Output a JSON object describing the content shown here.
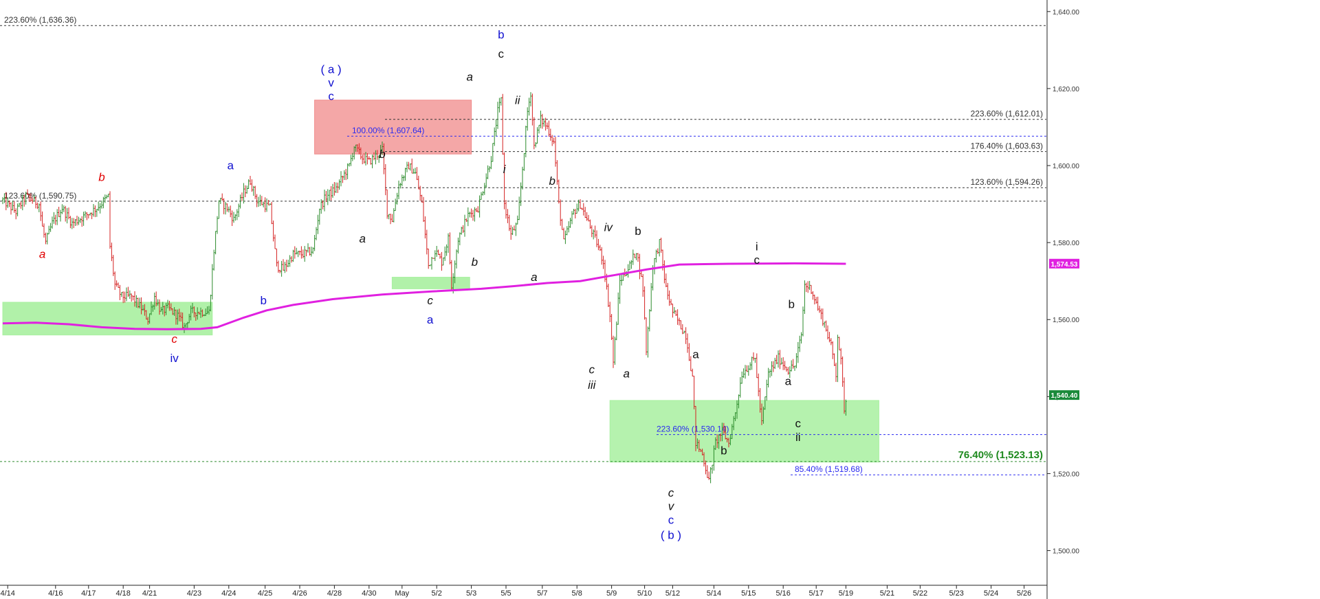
{
  "chart_data": {
    "type": "bar",
    "title": "",
    "xlabel": "",
    "ylabel": "",
    "ylim": [
      1491.0,
      1643.0
    ],
    "grid": false,
    "x_ticks": [
      {
        "i": 3,
        "label": "4/14"
      },
      {
        "i": 32,
        "label": "4/16"
      },
      {
        "i": 52,
        "label": "4/17"
      },
      {
        "i": 73,
        "label": "4/18"
      },
      {
        "i": 89,
        "label": "4/21"
      },
      {
        "i": 116,
        "label": "4/23"
      },
      {
        "i": 137,
        "label": "4/24"
      },
      {
        "i": 159,
        "label": "4/25"
      },
      {
        "i": 180,
        "label": "4/26"
      },
      {
        "i": 201,
        "label": "4/28"
      },
      {
        "i": 222,
        "label": "4/30"
      },
      {
        "i": 242,
        "label": "May"
      },
      {
        "i": 263,
        "label": "5/2"
      },
      {
        "i": 284,
        "label": "5/3"
      },
      {
        "i": 305,
        "label": "5/5"
      },
      {
        "i": 327,
        "label": "5/7"
      },
      {
        "i": 348,
        "label": "5/8"
      },
      {
        "i": 369,
        "label": "5/9"
      },
      {
        "i": 389,
        "label": "5/10"
      },
      {
        "i": 406,
        "label": "5/12"
      },
      {
        "i": 431,
        "label": "5/14"
      },
      {
        "i": 452,
        "label": "5/15"
      },
      {
        "i": 473,
        "label": "5/16"
      },
      {
        "i": 493,
        "label": "5/17"
      },
      {
        "i": 511,
        "label": "5/19"
      },
      {
        "i": 536,
        "label": "5/21"
      },
      {
        "i": 556,
        "label": "5/22"
      },
      {
        "i": 578,
        "label": "5/23"
      },
      {
        "i": 599,
        "label": "5/24"
      },
      {
        "i": 619,
        "label": "5/26"
      }
    ],
    "y_ticks": [
      {
        "v": 1500,
        "label": "1,500.00"
      },
      {
        "v": 1520,
        "label": "1,520.00"
      },
      {
        "v": 1540,
        "label": "1,540.00"
      },
      {
        "v": 1560,
        "label": "1,560.00"
      },
      {
        "v": 1580,
        "label": "1,580.00"
      },
      {
        "v": 1600,
        "label": "1,600.00"
      },
      {
        "v": 1620,
        "label": "1,620.00"
      },
      {
        "v": 1640,
        "label": "1,640.00"
      }
    ],
    "anchors": [
      [
        0,
        1591
      ],
      [
        8,
        1588
      ],
      [
        14,
        1592
      ],
      [
        22,
        1590
      ],
      [
        24,
        1584
      ],
      [
        26,
        1580
      ],
      [
        30,
        1585
      ],
      [
        36,
        1589
      ],
      [
        42,
        1585
      ],
      [
        50,
        1587
      ],
      [
        57,
        1589
      ],
      [
        64,
        1592
      ],
      [
        65,
        1579
      ],
      [
        68,
        1569
      ],
      [
        72,
        1566
      ],
      [
        78,
        1566
      ],
      [
        84,
        1563
      ],
      [
        88,
        1560
      ],
      [
        92,
        1566
      ],
      [
        96,
        1562
      ],
      [
        100,
        1563
      ],
      [
        106,
        1561
      ],
      [
        110,
        1558
      ],
      [
        114,
        1562
      ],
      [
        120,
        1562
      ],
      [
        125,
        1562
      ],
      [
        128,
        1578
      ],
      [
        131,
        1591
      ],
      [
        136,
        1589
      ],
      [
        140,
        1586
      ],
      [
        146,
        1593
      ],
      [
        150,
        1596
      ],
      [
        154,
        1591
      ],
      [
        162,
        1589
      ],
      [
        166,
        1574
      ],
      [
        170,
        1573
      ],
      [
        176,
        1577
      ],
      [
        182,
        1577
      ],
      [
        188,
        1578
      ],
      [
        192,
        1589
      ],
      [
        196,
        1592
      ],
      [
        202,
        1594
      ],
      [
        206,
        1597
      ],
      [
        210,
        1600
      ],
      [
        213,
        1605
      ],
      [
        218,
        1602
      ],
      [
        222,
        1601
      ],
      [
        230,
        1604
      ],
      [
        233,
        1588
      ],
      [
        236,
        1586
      ],
      [
        240,
        1595
      ],
      [
        246,
        1600
      ],
      [
        250,
        1598
      ],
      [
        254,
        1590
      ],
      [
        258,
        1574
      ],
      [
        262,
        1578
      ],
      [
        266,
        1575
      ],
      [
        270,
        1581
      ],
      [
        272,
        1569
      ],
      [
        276,
        1581
      ],
      [
        282,
        1587
      ],
      [
        288,
        1589
      ],
      [
        296,
        1602
      ],
      [
        300,
        1614
      ],
      [
        302,
        1617
      ],
      [
        304,
        1590
      ],
      [
        308,
        1582
      ],
      [
        312,
        1585
      ],
      [
        316,
        1604
      ],
      [
        318,
        1614
      ],
      [
        320,
        1619
      ],
      [
        322,
        1605
      ],
      [
        326,
        1612
      ],
      [
        330,
        1610
      ],
      [
        334,
        1606
      ],
      [
        337,
        1590
      ],
      [
        340,
        1580
      ],
      [
        346,
        1588
      ],
      [
        350,
        1590
      ],
      [
        356,
        1584
      ],
      [
        360,
        1580
      ],
      [
        364,
        1575
      ],
      [
        368,
        1561
      ],
      [
        370,
        1549
      ],
      [
        374,
        1570
      ],
      [
        380,
        1574
      ],
      [
        384,
        1578
      ],
      [
        388,
        1568
      ],
      [
        390,
        1552
      ],
      [
        394,
        1574
      ],
      [
        398,
        1580
      ],
      [
        402,
        1568
      ],
      [
        406,
        1562
      ],
      [
        410,
        1559
      ],
      [
        414,
        1556
      ],
      [
        418,
        1545
      ],
      [
        420,
        1528
      ],
      [
        424,
        1525
      ],
      [
        428,
        1518
      ],
      [
        432,
        1528
      ],
      [
        436,
        1531
      ],
      [
        440,
        1528
      ],
      [
        444,
        1536
      ],
      [
        448,
        1546
      ],
      [
        452,
        1548
      ],
      [
        456,
        1550
      ],
      [
        458,
        1541
      ],
      [
        460,
        1533
      ],
      [
        464,
        1546
      ],
      [
        470,
        1550
      ],
      [
        476,
        1547
      ],
      [
        480,
        1548
      ],
      [
        484,
        1556
      ],
      [
        486,
        1569
      ],
      [
        490,
        1568
      ],
      [
        494,
        1563
      ],
      [
        498,
        1559
      ],
      [
        502,
        1553
      ],
      [
        505,
        1546
      ],
      [
        506,
        1556
      ],
      [
        508,
        1549
      ],
      [
        510,
        1537
      ],
      [
        511,
        1539
      ]
    ],
    "ma": [
      [
        0,
        1559
      ],
      [
        20,
        1559.2
      ],
      [
        40,
        1558.8
      ],
      [
        60,
        1558
      ],
      [
        80,
        1557.6
      ],
      [
        100,
        1557.5
      ],
      [
        120,
        1557.6
      ],
      [
        130,
        1558
      ],
      [
        146,
        1560.5
      ],
      [
        160,
        1562.4
      ],
      [
        176,
        1563.8
      ],
      [
        200,
        1565.3
      ],
      [
        230,
        1566.5
      ],
      [
        260,
        1567.3
      ],
      [
        290,
        1568
      ],
      [
        310,
        1568.7
      ],
      [
        330,
        1569.5
      ],
      [
        350,
        1570
      ],
      [
        370,
        1571.5
      ],
      [
        390,
        1573
      ],
      [
        410,
        1574.3
      ],
      [
        440,
        1574.5
      ],
      [
        480,
        1574.6
      ],
      [
        511,
        1574.5
      ]
    ],
    "ma_label": "1,574.53",
    "last_price_label": "1,540.40",
    "levels": [
      {
        "id": "l1636",
        "v": 1636.36,
        "x0": 0,
        "x1": 1522,
        "color": "#333333",
        "label": "223.60% (1,636.36)",
        "label_x": 6,
        "anchor": "start"
      },
      {
        "id": "l1612",
        "v": 1612.01,
        "x0": 560,
        "x1": 1522,
        "color": "#333333",
        "label": "223.60% (1,612.01)",
        "label_x": 1517,
        "anchor": "end"
      },
      {
        "id": "l1607",
        "v": 1607.64,
        "x0": 505,
        "x1": 1522,
        "color": "#2a2af0",
        "label": "100.00% (1,607.64)",
        "label_x": 512,
        "anchor": "start"
      },
      {
        "id": "l1603",
        "v": 1603.63,
        "x0": 560,
        "x1": 1522,
        "color": "#333333",
        "label": "176.40% (1,603.63)",
        "label_x": 1517,
        "anchor": "end"
      },
      {
        "id": "l1594",
        "v": 1594.26,
        "x0": 560,
        "x1": 1522,
        "color": "#333333",
        "label": "123.60% (1,594.26)",
        "label_x": 1517,
        "anchor": "end"
      },
      {
        "id": "l1590",
        "v": 1590.75,
        "x0": 0,
        "x1": 1522,
        "color": "#333333",
        "label": "123.60% (1,590.75)",
        "label_x": 6,
        "anchor": "start"
      },
      {
        "id": "l1530",
        "v": 1530.14,
        "x0": 955,
        "x1": 1522,
        "color": "#2a2af0",
        "label": "223.60% (1,530.14)",
        "label_x": 955,
        "anchor": "start"
      },
      {
        "id": "l1523",
        "v": 1523.13,
        "x0": 0,
        "x1": 1522,
        "color": "#2e8b2e",
        "label": "",
        "label_x": 0,
        "anchor": "start"
      },
      {
        "id": "l1519",
        "v": 1519.68,
        "x0": 1150,
        "x1": 1522,
        "color": "#2a2af0",
        "label": "85.40% (1,519.68)",
        "label_x": 1156,
        "anchor": "start"
      }
    ],
    "big_level_label": "76.40% (1,523.13)",
    "zones": [
      {
        "id": "z1",
        "color": "#a8f0a0",
        "opacity": 0.9,
        "i0": 0,
        "i1": 127,
        "v0": 1564.5,
        "v1": 1556
      },
      {
        "id": "z2",
        "color": "#f08a8a",
        "opacity": 0.75,
        "i0": 189,
        "i1": 284,
        "v0": 1617,
        "v1": 1603
      },
      {
        "id": "z3",
        "color": "#a8f0a0",
        "opacity": 0.9,
        "i0": 236,
        "i1": 283,
        "v0": 1571,
        "v1": 1568
      },
      {
        "id": "z4",
        "color": "#a8f0a0",
        "opacity": 0.85,
        "i0": 368,
        "i1": 531,
        "v0": 1539,
        "v1": 1523
      }
    ],
    "wave_labels": [
      {
        "t": "a",
        "c": "#e00000",
        "i": 24,
        "v": 1576,
        "it": true
      },
      {
        "t": "b",
        "c": "#e00000",
        "i": 60,
        "v": 1596,
        "it": true
      },
      {
        "t": "c",
        "c": "#e00000",
        "i": 104,
        "v": 1554,
        "it": true
      },
      {
        "t": "iv",
        "c": "#1010d0",
        "i": 104,
        "v": 1549,
        "it": false
      },
      {
        "t": "b",
        "c": "#1010d0",
        "i": 158,
        "v": 1564,
        "it": false
      },
      {
        "t": "a",
        "c": "#1010d0",
        "i": 138,
        "v": 1599,
        "it": false
      },
      {
        "t": "( a )",
        "c": "#1010d0",
        "i": 199,
        "v": 1624,
        "it": false
      },
      {
        "t": "v",
        "c": "#1010d0",
        "i": 199,
        "v": 1620.5,
        "it": false
      },
      {
        "t": "c",
        "c": "#1010d0",
        "i": 199,
        "v": 1617,
        "it": false
      },
      {
        "t": "b",
        "c": "#111111",
        "i": 230,
        "v": 1602,
        "it": true
      },
      {
        "t": "a",
        "c": "#111111",
        "i": 218,
        "v": 1580,
        "it": true
      },
      {
        "t": "c",
        "c": "#111111",
        "i": 259,
        "v": 1564,
        "it": true
      },
      {
        "t": "a",
        "c": "#1010d0",
        "i": 259,
        "v": 1559,
        "it": false
      },
      {
        "t": "a",
        "c": "#111111",
        "i": 283,
        "v": 1622,
        "it": true
      },
      {
        "t": "b",
        "c": "#111111",
        "i": 286,
        "v": 1574,
        "it": true
      },
      {
        "t": "b",
        "c": "#1010d0",
        "i": 302,
        "v": 1633,
        "it": false
      },
      {
        "t": "c",
        "c": "#111111",
        "i": 302,
        "v": 1628,
        "it": false
      },
      {
        "t": "ii",
        "c": "#111111",
        "i": 312,
        "v": 1616,
        "it": true
      },
      {
        "t": "i",
        "c": "#111111",
        "i": 304,
        "v": 1598,
        "it": true
      },
      {
        "t": "b",
        "c": "#111111",
        "i": 333,
        "v": 1595,
        "it": true
      },
      {
        "t": "a",
        "c": "#111111",
        "i": 322,
        "v": 1570,
        "it": true
      },
      {
        "t": "iv",
        "c": "#111111",
        "i": 367,
        "v": 1583,
        "it": true
      },
      {
        "t": "b",
        "c": "#111111",
        "i": 385,
        "v": 1582,
        "it": false
      },
      {
        "t": "c",
        "c": "#111111",
        "i": 357,
        "v": 1546,
        "it": true
      },
      {
        "t": "iii",
        "c": "#111111",
        "i": 357,
        "v": 1542,
        "it": true
      },
      {
        "t": "a",
        "c": "#111111",
        "i": 378,
        "v": 1545,
        "it": true
      },
      {
        "t": "a",
        "c": "#111111",
        "i": 420,
        "v": 1550,
        "it": false
      },
      {
        "t": "b",
        "c": "#111111",
        "i": 437,
        "v": 1525,
        "it": false
      },
      {
        "t": "c",
        "c": "#111111",
        "i": 405,
        "v": 1514,
        "it": true
      },
      {
        "t": "v",
        "c": "#111111",
        "i": 405,
        "v": 1510.5,
        "it": true
      },
      {
        "t": "c",
        "c": "#1010d0",
        "i": 405,
        "v": 1507,
        "it": false
      },
      {
        "t": "( b )",
        "c": "#1010d0",
        "i": 405,
        "v": 1503,
        "it": false
      },
      {
        "t": "i",
        "c": "#111111",
        "i": 457,
        "v": 1578,
        "it": false
      },
      {
        "t": "c",
        "c": "#111111",
        "i": 457,
        "v": 1574.5,
        "it": false
      },
      {
        "t": "b",
        "c": "#111111",
        "i": 478,
        "v": 1563,
        "it": false
      },
      {
        "t": "a",
        "c": "#111111",
        "i": 476,
        "v": 1543,
        "it": false
      },
      {
        "t": "c",
        "c": "#111111",
        "i": 482,
        "v": 1532,
        "it": false
      },
      {
        "t": "ii",
        "c": "#111111",
        "i": 482,
        "v": 1528.5,
        "it": false
      }
    ]
  }
}
